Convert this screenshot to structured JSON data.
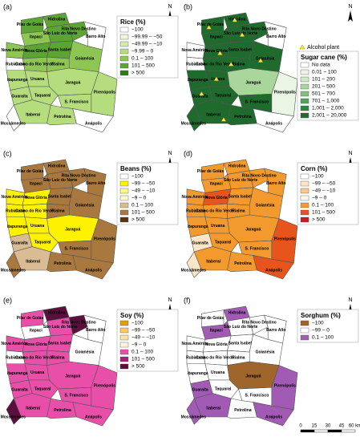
{
  "regions": [
    "Pilar de Goiás",
    "Hidrolina",
    "Itapaci",
    "São Luiz do Norte",
    "Rita Novo Destino",
    "Barro Alto",
    "Nova América",
    "Nova Glória",
    "Rubiataba",
    "Santa Isabel",
    "Goianésia",
    "Carmo do Rio Verde",
    "Rialma",
    "Itapuranga",
    "Uruana",
    "Jaraguá",
    "Pirenópolis",
    "Guaraíta",
    "Taquaral",
    "S. Francisco",
    "Itaberaí",
    "Petrolina",
    "Mossâmedes",
    "Anápolis"
  ],
  "north": "N",
  "alcohol_plant": "Alcohol plant",
  "scale": [
    "0",
    "15",
    "30",
    "45",
    "60 km"
  ],
  "panels": [
    {
      "label": "(a)",
      "legend_title": "Rice (%)",
      "legend": [
        {
          "label": "−100",
          "color": "#ffffff"
        },
        {
          "label": "−99.99 – −50",
          "color": "#eef7d9"
        },
        {
          "label": "−49.99 – −10",
          "color": "#d4ecaa"
        },
        {
          "label": "−9.99 – 0",
          "color": "#b5dd7e"
        },
        {
          "label": "0.1 – 100",
          "color": "#8dc653"
        },
        {
          "label": "101 – 500",
          "color": "#5ca532"
        },
        {
          "label": "> 500",
          "color": "#2f7a1f"
        }
      ],
      "region_colors": [
        "#5ca532",
        "#5ca532",
        "#8dc653",
        "#5ca532",
        "#5ca532",
        "#ffffff",
        "#8dc653",
        "#5ca532",
        "#ffffff",
        "#5ca532",
        "#8dc653",
        "#8dc653",
        "#8dc653",
        "#b5dd7e",
        "#b5dd7e",
        "#b5dd7e",
        "#b5dd7e",
        "#b5dd7e",
        "#b5dd7e",
        "#b5dd7e",
        "#b5dd7e",
        "#b5dd7e",
        "#ffffff",
        "#ffffff"
      ]
    },
    {
      "label": "(b)",
      "legend_title": "Sugar cane (%)",
      "legend": [
        {
          "label": "No data",
          "color": "#ffffff"
        },
        {
          "label": "0.01 – 100",
          "color": "#eaf5e4"
        },
        {
          "label": "101 – 200",
          "color": "#cfe8c3"
        },
        {
          "label": "201 – 500",
          "color": "#a9d69b"
        },
        {
          "label": "501 – 700",
          "color": "#7fc07a"
        },
        {
          "label": "701 – 1,000",
          "color": "#4fa35a"
        },
        {
          "label": "1,001 – 2,000",
          "color": "#2f8540"
        },
        {
          "label": "2,001 – 20,000",
          "color": "#1f6b2e"
        }
      ],
      "region_colors": [
        "#1f6b2e",
        "#1f6b2e",
        "#1f6b2e",
        "#1f6b2e",
        "#1f6b2e",
        "#ffffff",
        "#ffffff",
        "#1f6b2e",
        "#ffffff",
        "#1f6b2e",
        "#1f6b2e",
        "#1f6b2e",
        "#1f6b2e",
        "#1f6b2e",
        "#1f6b2e",
        "#a9d69b",
        "#eaf5e4",
        "#1f6b2e",
        "#1f6b2e",
        "#1f6b2e",
        "#1f6b2e",
        "#1f6b2e",
        "#1f6b2e",
        "#ffffff"
      ]
    },
    {
      "label": "(c)",
      "legend_title": "Beans (%)",
      "legend": [
        {
          "label": "−100",
          "color": "#ffffff"
        },
        {
          "label": "−99 – −50",
          "color": "#fff200"
        },
        {
          "label": "−49 – −10",
          "color": "#fff68a"
        },
        {
          "label": "−9 – 0",
          "color": "#fbf6d6"
        },
        {
          "label": "0.1 – 100",
          "color": "#d9bc93"
        },
        {
          "label": "101 – 500",
          "color": "#a9783f"
        },
        {
          "label": "> 500",
          "color": "#5a3412"
        }
      ],
      "region_colors": [
        "#a9783f",
        "#a9783f",
        "#a9783f",
        "#a9783f",
        "#a9783f",
        "#a9783f",
        "#fff200",
        "#fff200",
        "#fff200",
        "#a9783f",
        "#a9783f",
        "#fff200",
        "#a9783f",
        "#fff200",
        "#fff200",
        "#fff200",
        "#a9783f",
        "#d9bc93",
        "#fff200",
        "#a9783f",
        "#d9bc93",
        "#a9783f",
        "#a9783f",
        "#a9783f"
      ]
    },
    {
      "label": "(d)",
      "legend_title": "Corn (%)",
      "legend": [
        {
          "label": "−100",
          "color": "#ffffff"
        },
        {
          "label": "−99 – −50",
          "color": "#fde6c6"
        },
        {
          "label": "−49 – −10",
          "color": "#fbc98a"
        },
        {
          "label": "−9 – 0",
          "color": "#fff8e6"
        },
        {
          "label": "0.1 – 100",
          "color": "#f39a2e"
        },
        {
          "label": "101 – 500",
          "color": "#e7541c"
        },
        {
          "label": "> 500",
          "color": "#c61c1c"
        }
      ],
      "region_colors": [
        "#f39a2e",
        "#f39a2e",
        "#f39a2e",
        "#f39a2e",
        "#f39a2e",
        "#f39a2e",
        "#f39a2e",
        "#e7541c",
        "#f39a2e",
        "#f39a2e",
        "#f39a2e",
        "#f39a2e",
        "#f39a2e",
        "#f39a2e",
        "#f39a2e",
        "#f39a2e",
        "#e7541c",
        "#fde6c6",
        "#f39a2e",
        "#f39a2e",
        "#f39a2e",
        "#f39a2e",
        "#fde6c6",
        "#e7541c"
      ]
    },
    {
      "label": "(e)",
      "legend_title": "Soy (%)",
      "legend": [
        {
          "label": "−100",
          "color": "#e0a000"
        },
        {
          "label": "−99 – −50",
          "color": "#fbc96b"
        },
        {
          "label": "−49 – −10",
          "color": "#fde2a8"
        },
        {
          "label": "−9 – 0",
          "color": "#fff4e0"
        },
        {
          "label": "0.1 – 100",
          "color": "#e84fa8"
        },
        {
          "label": "101 – 500",
          "color": "#a3217a"
        },
        {
          "label": "> 500",
          "color": "#5a0f3d"
        }
      ],
      "region_colors": [
        "#e84fa8",
        "#5a0f3d",
        "#ffffff",
        "#e84fa8",
        "#5a0f3d",
        "#ffffff",
        "#e84fa8",
        "#e84fa8",
        "#ffffff",
        "#e84fa8",
        "#ffffff",
        "#e84fa8",
        "#e84fa8",
        "#e84fa8",
        "#e84fa8",
        "#e84fa8",
        "#e84fa8",
        "#e84fa8",
        "#e84fa8",
        "#e84fa8",
        "#e84fa8",
        "#e84fa8",
        "#5a0f3d",
        "#e84fa8"
      ]
    },
    {
      "label": "(f)",
      "legend_title": "Sorghum (%)",
      "legend": [
        {
          "label": "−100",
          "color": "#a0652a"
        },
        {
          "label": "−99 – 0",
          "color": "#ffffff"
        },
        {
          "label": "0.1 – 100",
          "color": "#a25bb5"
        }
      ],
      "region_colors": [
        "#ffffff",
        "#a25bb5",
        "#a25bb5",
        "#ffffff",
        "#ffffff",
        "#ffffff",
        "#ffffff",
        "#ffffff",
        "#ffffff",
        "#ffffff",
        "#ffffff",
        "#ffffff",
        "#ffffff",
        "#ffffff",
        "#ffffff",
        "#a0652a",
        "#a25bb5",
        "#a25bb5",
        "#ffffff",
        "#ffffff",
        "#a25bb5",
        "#ffffff",
        "#a25bb5",
        "#a25bb5"
      ]
    }
  ]
}
